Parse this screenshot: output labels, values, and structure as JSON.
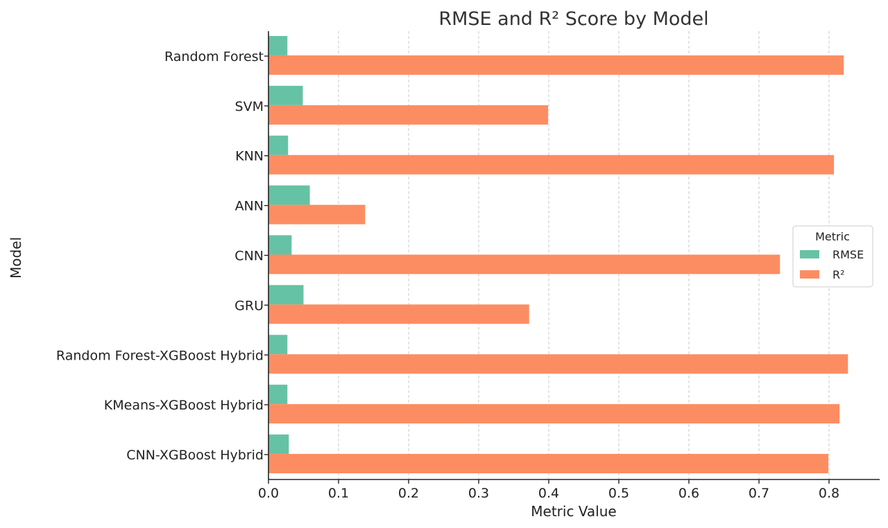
{
  "chart_data": {
    "type": "bar",
    "orientation": "horizontal",
    "title": "RMSE and R² Score by Model",
    "xlabel": "Metric Value",
    "ylabel": "Model",
    "categories": [
      "Random Forest",
      "SVM",
      "KNN",
      "ANN",
      "CNN",
      "GRU",
      "Random Forest-XGBoost Hybrid",
      "KMeans-XGBoost Hybrid",
      "CNN-XGBoost Hybrid"
    ],
    "series": [
      {
        "name": "RMSE",
        "color": "#66c2a5",
        "values": [
          0.027,
          0.049,
          0.028,
          0.059,
          0.033,
          0.05,
          0.027,
          0.027,
          0.029
        ]
      },
      {
        "name": "R²",
        "color": "#fc8d62",
        "values": [
          0.821,
          0.399,
          0.807,
          0.138,
          0.73,
          0.372,
          0.827,
          0.815,
          0.799
        ]
      }
    ],
    "xlim": [
      0,
      0.87
    ],
    "xticks": [
      "0.0",
      "0.1",
      "0.2",
      "0.3",
      "0.4",
      "0.5",
      "0.6",
      "0.7",
      "0.8"
    ],
    "grid": "x-dashed",
    "legend": {
      "title": "Metric",
      "placement": "center-right"
    }
  }
}
